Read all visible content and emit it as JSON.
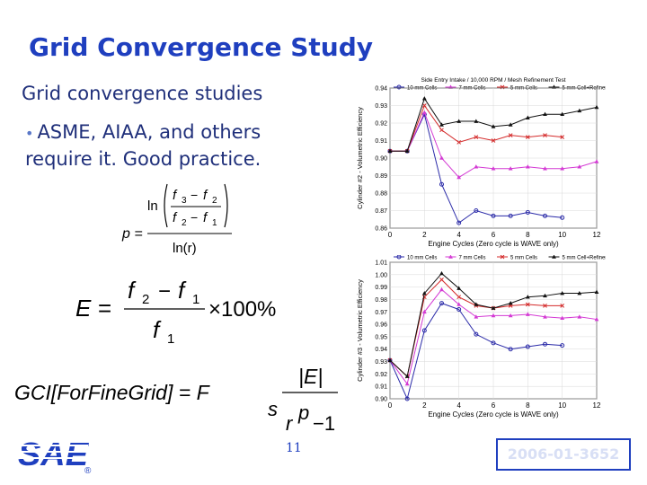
{
  "slide": {
    "title": "Grid Convergence Study",
    "subtitle": "Grid convergence studies",
    "bullet": "ASME, AIAA, and others require it. Good practice.",
    "page_number": "11",
    "paper_id": "2006-01-3652",
    "logo_text": "SAE",
    "logo_mark": "®"
  },
  "formulas": {
    "order": {
      "lhs": "p =",
      "ln": "ln",
      "f3": "f",
      "f2": "f",
      "f1": "f",
      "sub3": "3",
      "sub2": "2",
      "sub1": "1",
      "minus": "−",
      "lnr": "ln(r)"
    },
    "error": {
      "lhs": "E =",
      "pct": "×100%"
    },
    "gci": {
      "lhs": "GCI[ForFineGrid] = F",
      "s": "s",
      "absE": "|E|",
      "r": "r",
      "p": "p",
      "minus1": "−1"
    }
  },
  "colors": {
    "title": "#1f3fbf",
    "blue_series": "#2a2aa8",
    "magenta_series": "#d43ad4",
    "red_series": "#d42a2a",
    "black_series": "#111111"
  },
  "chart_data": [
    {
      "type": "line",
      "title": "Side Entry Intake / 10,000 RPM / Mesh Refinement Test",
      "xlabel": "Engine Cycles (Zero cycle is WAVE only)",
      "ylabel": "Cylinder #2 - Volumetric Efficiency",
      "xlim": [
        0,
        12
      ],
      "ylim": [
        0.86,
        0.94
      ],
      "xticks": [
        "0",
        "2",
        "4",
        "6",
        "8",
        "10",
        "12"
      ],
      "yticks": [
        "0.86",
        "0.87",
        "0.88",
        "0.89",
        "0.90",
        "0.91",
        "0.92",
        "0.93",
        "0.94"
      ],
      "series": [
        {
          "name": "10 mm Cells",
          "color": "#2a2aa8",
          "marker": "circle",
          "x": [
            0,
            1,
            2,
            3,
            4,
            5,
            6,
            7,
            8,
            9,
            10
          ],
          "values": [
            0.904,
            0.904,
            0.925,
            0.885,
            0.863,
            0.87,
            0.867,
            0.867,
            0.869,
            0.867,
            0.866
          ]
        },
        {
          "name": "7 mm Cells",
          "color": "#d43ad4",
          "marker": "triangle",
          "x": [
            0,
            1,
            2,
            3,
            4,
            5,
            6,
            7,
            8,
            9,
            10,
            11,
            12
          ],
          "values": [
            0.904,
            0.904,
            0.926,
            0.9,
            0.889,
            0.895,
            0.894,
            0.894,
            0.895,
            0.894,
            0.894,
            0.895,
            0.898
          ]
        },
        {
          "name": "5 mm Cells",
          "color": "#d42a2a",
          "marker": "x",
          "x": [
            0,
            1,
            2,
            3,
            4,
            5,
            6,
            7,
            8,
            9,
            10
          ],
          "values": [
            0.904,
            0.904,
            0.93,
            0.916,
            0.909,
            0.912,
            0.91,
            0.913,
            0.912,
            0.913,
            0.912
          ]
        },
        {
          "name": "5 mm Cell+Refinement",
          "color": "#111111",
          "marker": "triangle",
          "x": [
            0,
            1,
            2,
            3,
            4,
            5,
            6,
            7,
            8,
            9,
            10,
            11,
            12
          ],
          "values": [
            0.904,
            0.904,
            0.934,
            0.919,
            0.921,
            0.921,
            0.918,
            0.919,
            0.923,
            0.925,
            0.925,
            0.927,
            0.929
          ]
        }
      ]
    },
    {
      "type": "line",
      "xlabel": "Engine Cycles (Zero cycle is WAVE only)",
      "ylabel": "Cylinder #3 - Volumetric Efficiency",
      "xlim": [
        0,
        12
      ],
      "ylim": [
        0.9,
        1.01
      ],
      "xticks": [
        "0",
        "2",
        "4",
        "6",
        "8",
        "10",
        "12"
      ],
      "yticks": [
        "0.90",
        "0.91",
        "0.92",
        "0.93",
        "0.94",
        "0.95",
        "0.96",
        "0.97",
        "0.98",
        "0.99",
        "1.00",
        "1.01"
      ],
      "series": [
        {
          "name": "10 mm Cells",
          "color": "#2a2aa8",
          "marker": "circle",
          "x": [
            0,
            1,
            2,
            3,
            4,
            5,
            6,
            7,
            8,
            9,
            10
          ],
          "values": [
            0.931,
            0.9,
            0.955,
            0.977,
            0.972,
            0.952,
            0.945,
            0.94,
            0.942,
            0.944,
            0.943
          ]
        },
        {
          "name": "7 mm Cells",
          "color": "#d43ad4",
          "marker": "triangle",
          "x": [
            0,
            1,
            2,
            3,
            4,
            5,
            6,
            7,
            8,
            9,
            10,
            11,
            12
          ],
          "values": [
            0.931,
            0.912,
            0.97,
            0.988,
            0.976,
            0.966,
            0.967,
            0.967,
            0.968,
            0.966,
            0.965,
            0.966,
            0.964
          ]
        },
        {
          "name": "5 mm Cells",
          "color": "#d42a2a",
          "marker": "x",
          "x": [
            0,
            1,
            2,
            3,
            4,
            5,
            6,
            7,
            8,
            9,
            10
          ],
          "values": [
            0.931,
            0.918,
            0.982,
            0.996,
            0.982,
            0.975,
            0.973,
            0.975,
            0.976,
            0.975,
            0.975
          ]
        },
        {
          "name": "5 mm Cell+Refinement",
          "color": "#111111",
          "marker": "triangle",
          "x": [
            0,
            1,
            2,
            3,
            4,
            5,
            6,
            7,
            8,
            9,
            10,
            11,
            12
          ],
          "values": [
            0.931,
            0.918,
            0.985,
            1.001,
            0.989,
            0.976,
            0.973,
            0.977,
            0.982,
            0.983,
            0.985,
            0.985,
            0.986
          ]
        }
      ]
    }
  ]
}
